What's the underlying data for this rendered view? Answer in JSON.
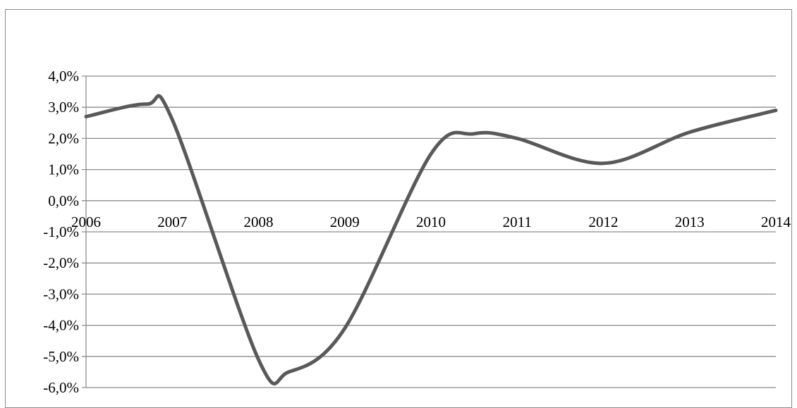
{
  "chart_data": {
    "type": "line",
    "x": [
      "2006",
      "2007",
      "2008",
      "2009",
      "2010",
      "2011",
      "2012",
      "2013",
      "2014"
    ],
    "series": [
      {
        "values": [
          2.7,
          2.6,
          -5.1,
          -4.1,
          1.5,
          2.0,
          1.2,
          2.2,
          2.9
        ]
      }
    ],
    "control_points": [
      [
        0.0,
        2.7
      ],
      [
        0.7,
        3.1
      ],
      [
        1.0,
        2.6
      ],
      [
        2.0,
        -5.1
      ],
      [
        2.35,
        -5.5
      ],
      [
        3.0,
        -4.1
      ],
      [
        4.0,
        1.5
      ],
      [
        4.5,
        2.15
      ],
      [
        5.0,
        2.0
      ],
      [
        6.0,
        1.2
      ],
      [
        7.0,
        2.2
      ],
      [
        8.0,
        2.9
      ]
    ],
    "y_ticks": [
      "4,0%",
      "3,0%",
      "2,0%",
      "1,0%",
      "0,0%",
      "-1,0%",
      "-2,0%",
      "-3,0%",
      "-4,0%",
      "-5,0%",
      "-6,0%"
    ],
    "ylim": [
      -6,
      4
    ],
    "y_tick_step": 1,
    "grid": true,
    "title": "",
    "xlabel": "",
    "ylabel": "",
    "line_color": "#595959",
    "grid_color": "#8c8c8c"
  }
}
